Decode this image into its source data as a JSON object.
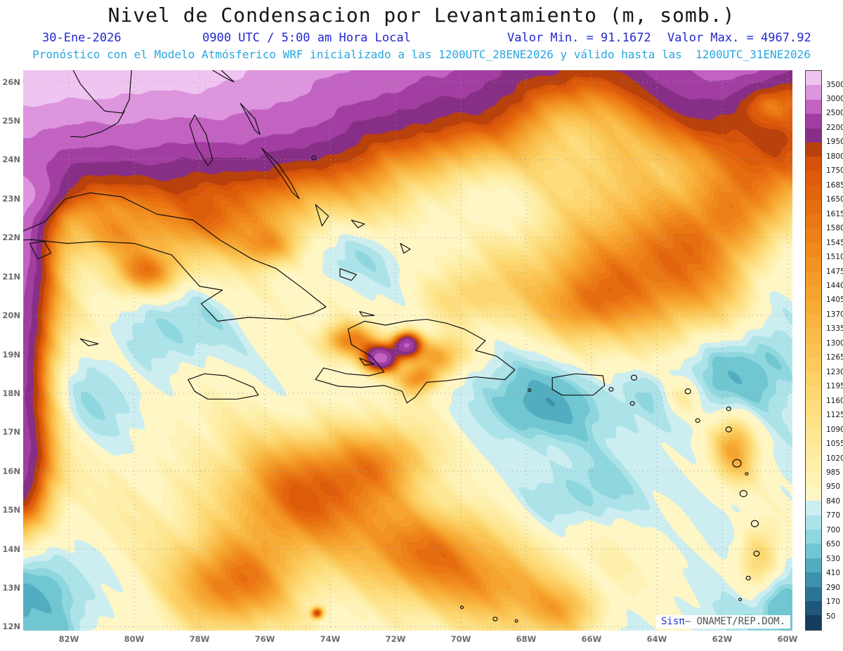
{
  "header": {
    "title": "Nivel de Condensacion por Levantamiento (m, somb.)",
    "date": "30-Ene-2026",
    "time": "0900 UTC / 5:00 am Hora Local",
    "min_label": "Valor Min. = 91.1672",
    "max_label": "Valor Max. = 4967.92",
    "forecast_line": "Pronóstico con el Modelo Atmósferico WRF inicializado a las 1200UTC_28ENE2026 y válido hasta las  1200UTC_31ENE2026"
  },
  "watermark": {
    "brand": "Sisπ",
    "sep": "– ",
    "org": "ONAMET/REP.DOM."
  },
  "chart_data": {
    "type": "filled_contour_map",
    "title": "Nivel de Condensacion por Levantamiento (m, somb.)",
    "units": "m",
    "valor_min": 91.1672,
    "valor_max": 4967.92,
    "extent": {
      "lon_min": -83.4,
      "lon_max": -59.85,
      "lat_min": 11.9,
      "lat_max": 26.3
    },
    "lat_ticks": [
      [
        26,
        "26N"
      ],
      [
        25,
        "25N"
      ],
      [
        24,
        "24N"
      ],
      [
        23,
        "23N"
      ],
      [
        22,
        "22N"
      ],
      [
        21,
        "21N"
      ],
      [
        20,
        "20N"
      ],
      [
        19,
        "19N"
      ],
      [
        18,
        "18N"
      ],
      [
        17,
        "17N"
      ],
      [
        16,
        "16N"
      ],
      [
        15,
        "15N"
      ],
      [
        14,
        "14N"
      ],
      [
        13,
        "13N"
      ],
      [
        12,
        "12N"
      ]
    ],
    "lon_ticks": [
      [
        -82,
        "82W"
      ],
      [
        -80,
        "80W"
      ],
      [
        -78,
        "78W"
      ],
      [
        -76,
        "76W"
      ],
      [
        -74,
        "74W"
      ],
      [
        -72,
        "72W"
      ],
      [
        -70,
        "70W"
      ],
      [
        -68,
        "68W"
      ],
      [
        -66,
        "66W"
      ],
      [
        -64,
        "64W"
      ],
      [
        -62,
        "62W"
      ],
      [
        -60,
        "60W"
      ]
    ],
    "grid": {
      "lat_start": 12,
      "lat_end": 26,
      "lon_start": -82,
      "lon_end": -60,
      "step": 2
    },
    "colorbar": {
      "levels": [
        3500,
        3000,
        2500,
        2200,
        1950,
        1800,
        1750,
        1685,
        1650,
        1615,
        1580,
        1545,
        1510,
        1475,
        1440,
        1405,
        1370,
        1335,
        1300,
        1265,
        1230,
        1195,
        1160,
        1125,
        1090,
        1055,
        1020,
        985,
        950,
        840,
        770,
        700,
        650,
        530,
        410,
        290,
        170,
        50
      ],
      "colors": [
        "#f0c4f0",
        "#dd95dd",
        "#c263c2",
        "#a23ea2",
        "#872f87",
        "#b8410c",
        "#d5520a",
        "#dd5c0b",
        "#e2650d",
        "#e66e10",
        "#ea7714",
        "#ed8018",
        "#f0891d",
        "#f29222",
        "#f49b28",
        "#f6a42f",
        "#f7ac37",
        "#f9b440",
        "#fabc49",
        "#fbc353",
        "#fbca5d",
        "#fcd167",
        "#fcd772",
        "#fddd7d",
        "#fde288",
        "#fee794",
        "#feeb9f",
        "#feefab",
        "#fff2b6",
        "#fff6c5",
        "#cceef0",
        "#ace3e8",
        "#8fd7de",
        "#70c6d1",
        "#53adc0",
        "#3d91ab",
        "#2c7494",
        "#1f567a",
        "#153b5e"
      ]
    },
    "field": {
      "base": 865,
      "blobs": [
        [
          -76.0,
          28.6,
          12.0,
          4.3,
          2600
        ],
        [
          -79.5,
          25.8,
          5.5,
          2.6,
          1100
        ],
        [
          -83.3,
          27.0,
          2.5,
          2.0,
          1100
        ],
        [
          -61.0,
          26.6,
          3.2,
          2.1,
          1400
        ],
        [
          -60.6,
          25.5,
          1.1,
          0.65,
          -650
        ],
        [
          -66.5,
          25.0,
          2.0,
          1.2,
          -350
        ],
        [
          -83.9,
          20.0,
          1.25,
          4.2,
          1900
        ],
        [
          -84.3,
          22.6,
          1.1,
          1.4,
          900
        ],
        [
          -83.0,
          23.15,
          0.9,
          0.55,
          650
        ],
        [
          -83.6,
          16.0,
          1.0,
          1.6,
          800
        ],
        [
          -79.6,
          21.1,
          1.0,
          0.55,
          600
        ],
        [
          -75.9,
          21.75,
          0.9,
          0.5,
          420
        ],
        [
          -77.3,
          22.4,
          1.6,
          0.7,
          280
        ],
        [
          -80.6,
          22.0,
          1.3,
          0.6,
          300
        ],
        [
          -72.45,
          18.9,
          0.5,
          0.33,
          1650
        ],
        [
          -71.65,
          19.25,
          0.4,
          0.3,
          1500
        ],
        [
          -73.4,
          19.35,
          0.8,
          0.45,
          650
        ],
        [
          -70.7,
          18.95,
          0.9,
          0.5,
          550
        ],
        [
          -71.3,
          18.35,
          0.6,
          0.35,
          500
        ],
        [
          -64.6,
          20.9,
          3.4,
          1.7,
          800
        ],
        [
          -66.2,
          20.2,
          1.3,
          0.8,
          280
        ],
        [
          -61.8,
          22.6,
          2.2,
          1.2,
          450
        ],
        [
          -60.4,
          24.0,
          1.6,
          1.2,
          350
        ],
        [
          -74.6,
          15.4,
          2.7,
          1.5,
          640
        ],
        [
          -70.9,
          13.9,
          2.3,
          1.2,
          580
        ],
        [
          -76.9,
          13.1,
          1.9,
          1.1,
          540
        ],
        [
          -72.2,
          16.3,
          1.6,
          0.9,
          400
        ],
        [
          -68.6,
          13.0,
          1.7,
          0.9,
          340
        ],
        [
          -66.9,
          12.4,
          1.2,
          0.7,
          380
        ],
        [
          -70.0,
          20.4,
          1.4,
          0.7,
          200
        ],
        [
          -61.6,
          16.6,
          0.7,
          0.9,
          520
        ],
        [
          -60.9,
          13.6,
          0.7,
          1.0,
          480
        ],
        [
          -63.2,
          17.9,
          0.6,
          0.5,
          300
        ],
        [
          -84.0,
          12.6,
          2.3,
          1.7,
          -560
        ],
        [
          -69.6,
          23.1,
          3.2,
          1.4,
          -300
        ],
        [
          -73.2,
          21.6,
          2.0,
          0.9,
          -220
        ],
        [
          -67.4,
          17.7,
          1.6,
          0.9,
          -280
        ],
        [
          -61.3,
          18.6,
          1.7,
          1.1,
          -260
        ],
        [
          -66.6,
          15.3,
          1.9,
          0.9,
          -250
        ],
        [
          -60.6,
          12.4,
          1.5,
          1.1,
          -320
        ],
        [
          -60.2,
          21.0,
          1.3,
          2.0,
          -220
        ],
        [
          -78.9,
          19.7,
          1.7,
          1.0,
          -200
        ],
        [
          -81.5,
          18.0,
          2.0,
          1.2,
          -180
        ],
        [
          -64.0,
          17.9,
          1.5,
          0.8,
          -150
        ],
        [
          -71.5,
          14.0,
          8.0,
          3.0,
          120
        ],
        [
          -63.0,
          18.5,
          5.0,
          3.5,
          -60
        ],
        [
          -74.4,
          12.35,
          0.18,
          0.14,
          900
        ]
      ],
      "noise": [
        [
          85,
          0.55,
          0.85,
          1.7,
          0.35,
          0.6,
          0.4
        ],
        [
          65,
          1.3,
          0.7,
          4.2,
          0.9,
          1.15,
          2.1
        ],
        [
          45,
          2.3,
          1.7,
          0.8,
          1.6,
          2.4,
          5.0
        ],
        [
          30,
          4.1,
          3.3,
          2.6,
          3.0,
          4.5,
          1.2
        ]
      ]
    },
    "coastlines": [
      [
        [
          -81.9,
          26.35
        ],
        [
          -81.65,
          25.95
        ],
        [
          -81.25,
          25.55
        ],
        [
          -80.9,
          25.25
        ],
        [
          -80.35,
          25.2
        ],
        [
          -80.15,
          25.55
        ],
        [
          -80.08,
          26.35
        ]
      ],
      [
        [
          -80.3,
          25.25
        ],
        [
          -80.5,
          24.95
        ],
        [
          -81.0,
          24.72
        ],
        [
          -81.55,
          24.58
        ],
        [
          -81.95,
          24.6
        ]
      ],
      [
        [
          -78.6,
          26.52
        ],
        [
          -78.0,
          26.55
        ],
        [
          -77.4,
          26.35
        ],
        [
          -76.95,
          26.0
        ],
        [
          -77.2,
          26.1
        ],
        [
          -77.8,
          26.4
        ],
        [
          -78.45,
          26.42
        ],
        [
          -78.6,
          26.52
        ]
      ],
      [
        [
          -78.15,
          25.15
        ],
        [
          -77.8,
          24.65
        ],
        [
          -77.6,
          24.0
        ],
        [
          -77.75,
          23.85
        ],
        [
          -78.1,
          24.35
        ],
        [
          -78.3,
          24.9
        ],
        [
          -78.15,
          25.15
        ]
      ],
      [
        [
          -76.75,
          25.45
        ],
        [
          -76.3,
          25.05
        ],
        [
          -76.15,
          24.65
        ],
        [
          -76.3,
          24.75
        ],
        [
          -76.55,
          25.15
        ],
        [
          -76.75,
          25.45
        ]
      ],
      [
        [
          -76.1,
          24.3
        ],
        [
          -75.6,
          23.9
        ],
        [
          -75.2,
          23.4
        ],
        [
          -74.95,
          23.0
        ],
        [
          -75.15,
          23.15
        ],
        [
          -75.5,
          23.6
        ],
        [
          -75.9,
          24.05
        ],
        [
          -76.1,
          24.3
        ]
      ],
      [
        [
          -74.45,
          22.85
        ],
        [
          -74.05,
          22.55
        ],
        [
          -74.25,
          22.3
        ],
        [
          -74.45,
          22.85
        ]
      ],
      [
        [
          -73.35,
          22.45
        ],
        [
          -72.95,
          22.35
        ],
        [
          -73.15,
          22.25
        ],
        [
          -73.35,
          22.45
        ]
      ],
      [
        [
          -73.7,
          21.2
        ],
        [
          -73.2,
          21.05
        ],
        [
          -73.35,
          20.9
        ],
        [
          -73.7,
          21.0
        ],
        [
          -73.7,
          21.2
        ]
      ],
      [
        [
          -71.85,
          21.85
        ],
        [
          -71.55,
          21.7
        ],
        [
          -71.75,
          21.6
        ],
        [
          -71.85,
          21.85
        ]
      ],
      [
        [
          -84.95,
          21.85
        ],
        [
          -84.45,
          22.05
        ],
        [
          -83.6,
          22.1
        ],
        [
          -82.75,
          22.4
        ],
        [
          -82.1,
          23.0
        ],
        [
          -81.35,
          23.15
        ],
        [
          -80.4,
          23.05
        ],
        [
          -79.3,
          22.6
        ],
        [
          -78.2,
          22.45
        ],
        [
          -77.4,
          21.95
        ],
        [
          -76.4,
          21.45
        ],
        [
          -75.65,
          21.2
        ],
        [
          -74.85,
          20.7
        ],
        [
          -74.13,
          20.22
        ],
        [
          -74.55,
          20.05
        ],
        [
          -75.3,
          19.9
        ],
        [
          -76.5,
          19.95
        ],
        [
          -77.45,
          19.85
        ],
        [
          -77.95,
          20.3
        ],
        [
          -77.3,
          20.65
        ],
        [
          -78.0,
          20.75
        ],
        [
          -78.85,
          21.55
        ],
        [
          -80.0,
          21.85
        ],
        [
          -81.1,
          21.9
        ],
        [
          -82.05,
          21.85
        ],
        [
          -83.15,
          21.95
        ],
        [
          -84.1,
          21.9
        ],
        [
          -84.95,
          21.85
        ]
      ],
      [
        [
          -83.2,
          21.85
        ],
        [
          -82.75,
          21.9
        ],
        [
          -82.55,
          21.6
        ],
        [
          -82.95,
          21.45
        ],
        [
          -83.2,
          21.85
        ]
      ],
      [
        [
          -74.45,
          18.35
        ],
        [
          -74.2,
          18.65
        ],
        [
          -73.5,
          18.5
        ],
        [
          -72.8,
          18.45
        ],
        [
          -72.35,
          18.55
        ],
        [
          -72.75,
          18.95
        ],
        [
          -73.35,
          19.25
        ],
        [
          -73.45,
          19.65
        ],
        [
          -72.95,
          19.85
        ],
        [
          -72.3,
          19.75
        ],
        [
          -71.7,
          19.85
        ],
        [
          -71.05,
          19.9
        ],
        [
          -70.45,
          19.8
        ],
        [
          -69.9,
          19.65
        ],
        [
          -69.25,
          19.35
        ],
        [
          -69.55,
          19.1
        ],
        [
          -68.9,
          18.95
        ],
        [
          -68.35,
          18.6
        ],
        [
          -68.65,
          18.35
        ],
        [
          -69.55,
          18.42
        ],
        [
          -70.45,
          18.32
        ],
        [
          -71.05,
          18.28
        ],
        [
          -71.4,
          17.9
        ],
        [
          -71.65,
          17.75
        ],
        [
          -71.8,
          18.05
        ],
        [
          -72.35,
          18.2
        ],
        [
          -73.05,
          18.15
        ],
        [
          -73.75,
          18.18
        ],
        [
          -74.45,
          18.35
        ]
      ],
      [
        [
          -78.35,
          18.35
        ],
        [
          -77.85,
          18.5
        ],
        [
          -77.2,
          18.45
        ],
        [
          -76.35,
          18.15
        ],
        [
          -76.2,
          17.95
        ],
        [
          -76.85,
          17.85
        ],
        [
          -77.75,
          17.85
        ],
        [
          -78.15,
          18.05
        ],
        [
          -78.35,
          18.35
        ]
      ],
      [
        [
          -67.2,
          18.4
        ],
        [
          -66.5,
          18.5
        ],
        [
          -65.65,
          18.45
        ],
        [
          -65.6,
          18.2
        ],
        [
          -65.95,
          17.95
        ],
        [
          -66.9,
          17.95
        ],
        [
          -67.2,
          18.1
        ],
        [
          -67.2,
          18.4
        ]
      ],
      [
        [
          -73.1,
          20.1
        ],
        [
          -72.65,
          20.0
        ],
        [
          -73.0,
          19.98
        ],
        [
          -73.1,
          20.1
        ]
      ],
      [
        [
          -73.1,
          18.9
        ],
        [
          -72.65,
          18.75
        ],
        [
          -72.95,
          18.72
        ],
        [
          -73.1,
          18.9
        ]
      ],
      [
        [
          -81.65,
          19.4
        ],
        [
          -81.1,
          19.27
        ],
        [
          -81.4,
          19.22
        ],
        [
          -81.65,
          19.4
        ]
      ]
    ],
    "islands": [
      [
        -74.5,
        24.05,
        3
      ],
      [
        -67.9,
        18.08,
        2
      ],
      [
        -65.4,
        18.1,
        3
      ],
      [
        -64.7,
        18.4,
        4
      ],
      [
        -64.75,
        17.74,
        3
      ],
      [
        -63.05,
        18.05,
        4
      ],
      [
        -62.75,
        17.3,
        3
      ],
      [
        -61.8,
        17.6,
        3
      ],
      [
        -61.8,
        17.07,
        4
      ],
      [
        -61.55,
        16.2,
        6
      ],
      [
        -61.25,
        15.93,
        2
      ],
      [
        -61.35,
        15.42,
        5
      ],
      [
        -61.0,
        14.65,
        5
      ],
      [
        -60.95,
        13.88,
        4
      ],
      [
        -61.2,
        13.25,
        3
      ],
      [
        -61.45,
        12.7,
        2
      ],
      [
        -61.65,
        12.1,
        3
      ],
      [
        -69.97,
        12.5,
        2
      ],
      [
        -68.95,
        12.2,
        3
      ],
      [
        -68.3,
        12.15,
        2
      ]
    ]
  }
}
